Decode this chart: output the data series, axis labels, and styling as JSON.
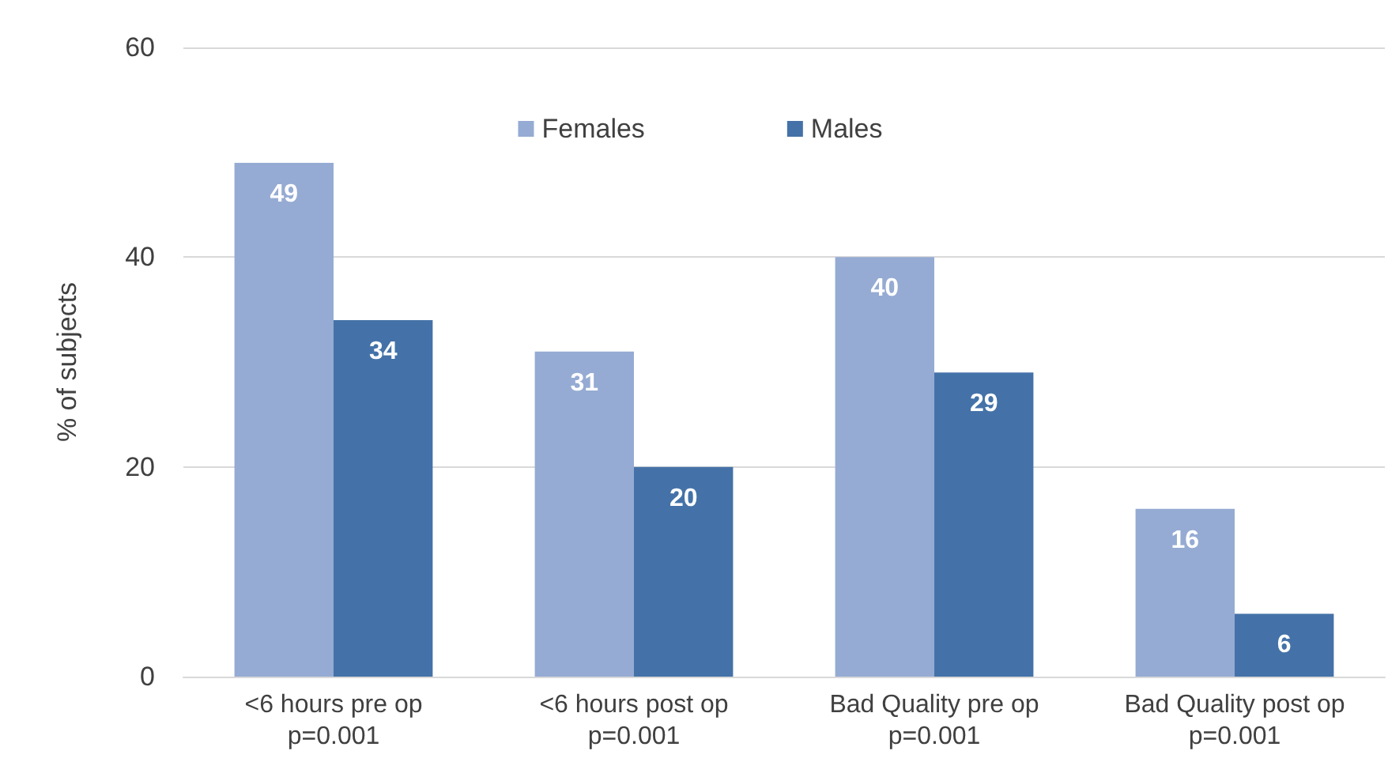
{
  "chart_data": {
    "type": "bar",
    "ylabel": "% of subjects",
    "categories": [
      "<6 hours pre op\np=0.001",
      "<6 hours post op\np=0.001",
      "Bad Quality pre op\np=0.001",
      "Bad Quality post op\np=0.001"
    ],
    "series": [
      {
        "name": "Females",
        "color": "#95abd3",
        "values": [
          49,
          31,
          40,
          16
        ]
      },
      {
        "name": "Males",
        "color": "#4472a8",
        "values": [
          34,
          20,
          29,
          6
        ]
      }
    ],
    "ylim": [
      0,
      60
    ],
    "yticks": [
      0,
      20,
      40,
      60
    ],
    "grid": "y",
    "legend": "top",
    "data_labels": true
  }
}
